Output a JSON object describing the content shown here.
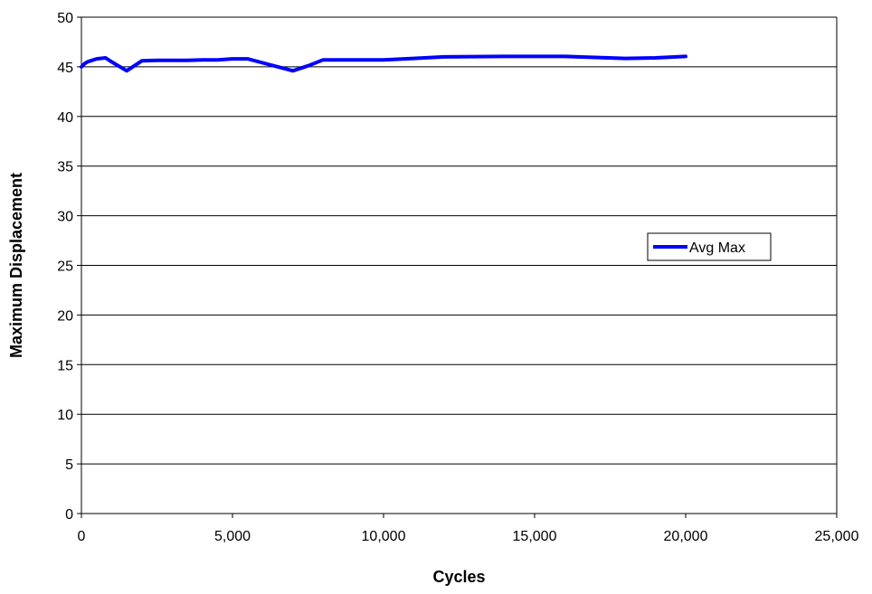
{
  "chart_data": {
    "type": "line",
    "title": "",
    "xlabel": "Cycles",
    "ylabel": "Maximum Displacement",
    "xlim": [
      0,
      25000
    ],
    "ylim": [
      0,
      50
    ],
    "x_ticks": [
      0,
      5000,
      10000,
      15000,
      20000,
      25000
    ],
    "x_tick_labels": [
      "0",
      "5,000",
      "10,000",
      "15,000",
      "20,000",
      "25,000"
    ],
    "y_ticks": [
      0,
      5,
      10,
      15,
      20,
      25,
      30,
      35,
      40,
      45,
      50
    ],
    "y_tick_labels": [
      "0",
      "5",
      "10",
      "15",
      "20",
      "25",
      "30",
      "35",
      "40",
      "45",
      "50"
    ],
    "grid": "horizontal",
    "legend_position": "right",
    "series": [
      {
        "name": "Avg Max",
        "color": "#0000FF",
        "x": [
          0,
          100,
          200,
          300,
          500,
          800,
          1000,
          1500,
          2000,
          2500,
          3000,
          3500,
          4000,
          4500,
          5000,
          5500,
          6000,
          6500,
          7000,
          7500,
          8000,
          9000,
          10000,
          11000,
          12000,
          14000,
          16000,
          17000,
          18000,
          19000,
          20000
        ],
        "y": [
          45.0,
          45.3,
          45.5,
          45.6,
          45.8,
          45.9,
          45.5,
          44.6,
          45.6,
          45.65,
          45.65,
          45.65,
          45.7,
          45.7,
          45.8,
          45.8,
          45.4,
          45.0,
          44.6,
          45.1,
          45.7,
          45.7,
          45.7,
          45.85,
          46.0,
          46.05,
          46.05,
          45.95,
          45.85,
          45.9,
          46.05
        ]
      }
    ]
  }
}
